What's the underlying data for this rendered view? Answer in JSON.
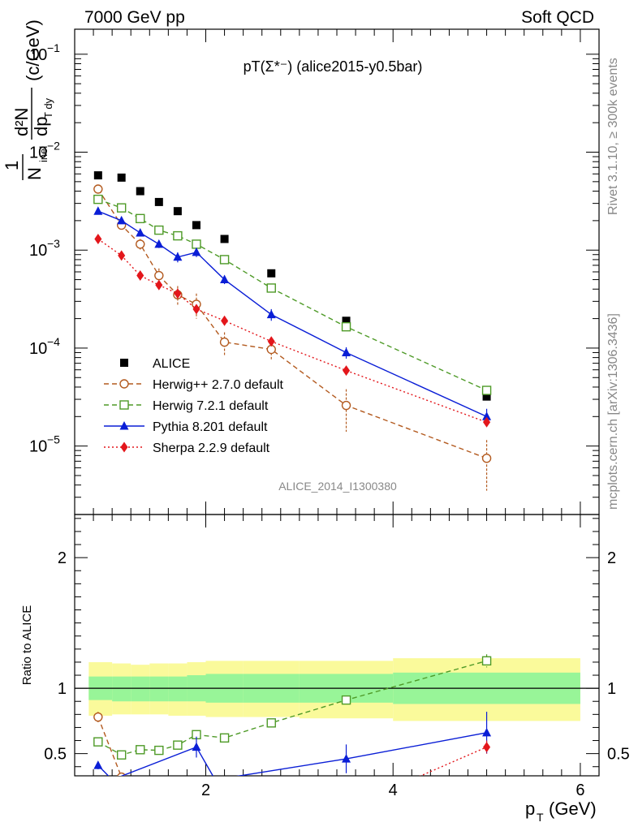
{
  "header": {
    "left": "7000 GeV pp",
    "right": "Soft QCD"
  },
  "side_labels": {
    "rivet": "Rivet 3.1.10, ≥ 300k events",
    "mcplots": "mcplots.cern.ch [arXiv:1306.3436]"
  },
  "watermark": "ALICE_2014_I1300380",
  "chart_data": [
    {
      "type": "scatter",
      "panel": "main",
      "title": "pT(Σ*⁻) (alice2015-y0.5bar)",
      "ylabel": "1/N_inel d²N/dp_T dy (c/GeV)",
      "ylabel_parts": {
        "one": "1",
        "n_inel": "N",
        "inel_sub": "inel",
        "d2n": "d²N",
        "dp": "dp",
        "tdy_sub": "T dy",
        "unit": "(c/GeV)"
      },
      "y_scale": "log",
      "ylim": [
        2e-06,
        0.18
      ],
      "xlim": [
        0.6,
        6.2
      ],
      "y_ticks": [
        {
          "value": 1e-05,
          "mantissa": "10",
          "exp": "−5"
        },
        {
          "value": 0.0001,
          "mantissa": "10",
          "exp": "−4"
        },
        {
          "value": 0.001,
          "mantissa": "10",
          "exp": "−3"
        },
        {
          "value": 0.01,
          "mantissa": "10",
          "exp": "−2"
        },
        {
          "value": 0.1,
          "mantissa": "10",
          "exp": "−1"
        }
      ],
      "series": [
        {
          "name": "ALICE",
          "color": "#000000",
          "marker": "square-filled",
          "line": "none",
          "x": [
            0.85,
            1.1,
            1.3,
            1.5,
            1.7,
            1.9,
            2.2,
            2.7,
            3.5,
            5.0
          ],
          "y": [
            0.0058,
            0.0055,
            0.004,
            0.0031,
            0.0025,
            0.0018,
            0.0013,
            0.00058,
            0.00019,
            3.2e-05
          ]
        },
        {
          "name": "Herwig++ 2.7.0 default",
          "color": "#b35a1f",
          "marker": "circle-open",
          "line": "dashed",
          "x": [
            0.85,
            1.1,
            1.3,
            1.5,
            1.7,
            1.9,
            2.2,
            2.7,
            3.5,
            5.0
          ],
          "y": [
            0.0042,
            0.0018,
            0.00115,
            0.00055,
            0.00035,
            0.00028,
            0.000115,
            9.7e-05,
            2.6e-05,
            7.5e-06
          ],
          "err": [
            0.0003,
            0.00015,
            0.00015,
            0.0001,
            8e-05,
            8e-05,
            3e-05,
            2.2e-05,
            1.2e-05,
            4e-06
          ]
        },
        {
          "name": "Herwig 7.2.1 default",
          "color": "#4e9a27",
          "marker": "square-open",
          "line": "dashed",
          "x": [
            0.85,
            1.1,
            1.3,
            1.5,
            1.7,
            1.9,
            2.2,
            2.7,
            3.5,
            5.0
          ],
          "y": [
            0.0033,
            0.0027,
            0.0021,
            0.0016,
            0.0014,
            0.00115,
            0.0008,
            0.00041,
            0.000165,
            3.7e-05
          ],
          "err": [
            0.0002,
            0.00015,
            0.00012,
            0.0001,
            0.0001,
            8e-05,
            6e-05,
            3e-05,
            1e-05,
            3e-06
          ]
        },
        {
          "name": "Pythia 8.201 default",
          "color": "#0a1ed6",
          "marker": "triangle-filled",
          "line": "solid",
          "x": [
            0.85,
            1.1,
            1.3,
            1.5,
            1.7,
            1.9,
            2.2,
            2.7,
            3.5,
            5.0
          ],
          "y": [
            0.0025,
            0.002,
            0.0015,
            0.00115,
            0.00085,
            0.00095,
            0.0005,
            0.00022,
            9e-05,
            2e-05
          ],
          "err": [
            0.0001,
            0.0001,
            0.0001,
            0.0001,
            0.0001,
            0.0001,
            5e-05,
            3e-05,
            1.2e-05,
            4e-06
          ]
        },
        {
          "name": "Sherpa 2.2.9 default",
          "color": "#e3161b",
          "marker": "diamond-filled",
          "line": "dotted",
          "x": [
            0.85,
            1.1,
            1.3,
            1.5,
            1.7,
            1.9,
            2.2,
            2.7,
            3.5,
            5.0
          ],
          "y": [
            0.0013,
            0.00088,
            0.00055,
            0.00044,
            0.00036,
            0.00025,
            0.00019,
            0.000117,
            5.9e-05,
            1.75e-05
          ],
          "err": [
            5e-05,
            4e-05,
            3e-05,
            3e-05,
            3e-05,
            2e-05,
            1e-05,
            7e-06,
            4e-06,
            1.5e-06
          ]
        }
      ]
    },
    {
      "type": "scatter",
      "panel": "ratio",
      "ylabel": "Ratio to ALICE",
      "xlabel": "p_T (GeV)",
      "xlabel_parts": {
        "p": "p",
        "sub": "T",
        "unit": "(GeV)"
      },
      "xlim": [
        0.6,
        6.2
      ],
      "ylim": [
        0.33,
        2.33
      ],
      "x_ticks": [
        {
          "value": 2,
          "label": "2"
        },
        {
          "value": 4,
          "label": "4"
        },
        {
          "value": 6,
          "label": "6"
        }
      ],
      "y_ticks": [
        {
          "value": 0.5,
          "label": "0.5"
        },
        {
          "value": 1,
          "label": "1"
        },
        {
          "value": 2,
          "label": "2"
        }
      ],
      "bands": {
        "edges": [
          0.75,
          1.0,
          1.2,
          1.4,
          1.6,
          1.8,
          2.0,
          2.4,
          3.0,
          4.0,
          6.0
        ],
        "stat_lo": [
          0.91,
          0.9,
          0.9,
          0.9,
          0.9,
          0.9,
          0.89,
          0.89,
          0.89,
          0.88
        ],
        "stat_hi": [
          1.09,
          1.09,
          1.09,
          1.09,
          1.09,
          1.1,
          1.11,
          1.11,
          1.11,
          1.12
        ],
        "tot_lo": [
          0.79,
          0.8,
          0.8,
          0.8,
          0.79,
          0.79,
          0.78,
          0.78,
          0.77,
          0.75
        ],
        "tot_hi": [
          1.2,
          1.19,
          1.18,
          1.19,
          1.19,
          1.2,
          1.21,
          1.21,
          1.21,
          1.23
        ],
        "stat_color": "#98f598",
        "total_color": "#fafa9b"
      },
      "series": [
        {
          "name": "Herwig++ 2.7.0 default",
          "color": "#b35a1f",
          "marker": "circle-open",
          "line": "dashed",
          "x": [
            0.85,
            1.1
          ],
          "y": [
            0.78,
            0.32
          ],
          "err": [
            0.04,
            0.0
          ]
        },
        {
          "name": "Herwig 7.2.1 default",
          "color": "#4e9a27",
          "marker": "square-open",
          "line": "dashed",
          "x": [
            0.85,
            1.1,
            1.3,
            1.5,
            1.7,
            1.9,
            2.2,
            2.7,
            3.5,
            5.0
          ],
          "y": [
            0.59,
            0.49,
            0.53,
            0.525,
            0.565,
            0.645,
            0.62,
            0.735,
            0.91,
            1.21
          ],
          "err": [
            0.0,
            0.0,
            0.0,
            0.0,
            0.0,
            0.0,
            0.0,
            0.0,
            0.02,
            0.05
          ]
        },
        {
          "name": "Pythia 8.201 default",
          "color": "#0a1ed6",
          "marker": "triangle-filled",
          "line": "solid",
          "x": [
            0.85,
            1.0,
            1.9,
            2.1,
            3.5,
            5.0
          ],
          "y": [
            0.41,
            0.3,
            0.55,
            0.3,
            0.46,
            0.66
          ],
          "err": [
            0.03,
            0.0,
            0.08,
            0.0,
            0.11,
            0.16
          ],
          "hidden": [
            false,
            true,
            false,
            true,
            false,
            false
          ]
        },
        {
          "name": "Sherpa 2.2.9 default",
          "color": "#e3161b",
          "marker": "diamond-filled",
          "line": "dotted",
          "x": [
            4.2,
            5.0
          ],
          "y": [
            0.3,
            0.55
          ],
          "err": [
            0.0,
            0.05
          ],
          "hidden": [
            true,
            false
          ]
        }
      ]
    }
  ]
}
